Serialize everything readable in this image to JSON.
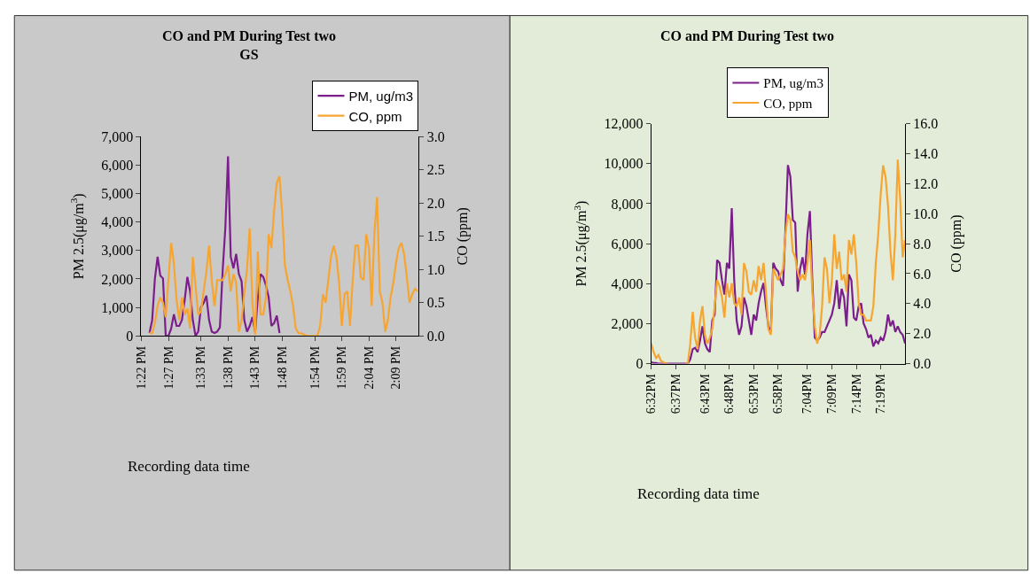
{
  "chart_data": [
    {
      "type": "line",
      "title": "CO and PM During Test two\nGS",
      "xlabel": "Recording data time",
      "ylabel": "PM 2.5(μg/m$^{3}$)",
      "y2label": "CO (ppm)",
      "legend": "top right",
      "marker": "none",
      "line_style": "solid",
      "x": [
        13.3917,
        13.4,
        13.4083,
        13.4167,
        13.425,
        13.4333,
        13.4417,
        13.45,
        13.4583,
        13.4667,
        13.475,
        13.4833,
        13.4917,
        13.5,
        13.5083,
        13.5167,
        13.525,
        13.5333,
        13.5417,
        13.55,
        13.5583,
        13.5667,
        13.575,
        13.5833,
        13.5917,
        13.6,
        13.6083,
        13.6167,
        13.625,
        13.6333,
        13.6417,
        13.65,
        13.6583,
        13.6667,
        13.675,
        13.6833,
        13.6917,
        13.7,
        13.7083,
        13.7167,
        13.725,
        13.7333,
        13.7417,
        13.75,
        13.7583,
        13.7667,
        13.775,
        13.7833,
        13.7917,
        13.8,
        13.8083,
        13.8167,
        13.825,
        13.8333,
        13.8417,
        13.85,
        13.8583,
        13.8667,
        13.875,
        13.8833,
        13.8917,
        13.9,
        13.9083,
        13.9167,
        13.925,
        13.9333,
        13.9417,
        13.95,
        13.9583,
        13.9667,
        13.975,
        13.9833,
        13.9917,
        14.0,
        14.0083,
        14.0167,
        14.025,
        14.0333,
        14.0417,
        14.05,
        14.0583,
        14.0667,
        14.075,
        14.0833,
        14.0917,
        14.1,
        14.1083,
        14.1167,
        14.125,
        14.1333,
        14.1417,
        14.15,
        14.1583,
        14.1667,
        14.175,
        14.1833,
        14.1917,
        14.2,
        14.2083,
        14.2167
      ],
      "series": [
        {
          "name": "PM, ug/m3",
          "color": "#7b1e8c",
          "values": [
            100,
            550,
            2000,
            2780,
            2120,
            2020,
            0,
            0,
            250,
            760,
            350,
            350,
            560,
            1260,
            2070,
            1570,
            560,
            0,
            150,
            1010,
            1160,
            1410,
            560,
            150,
            100,
            150,
            300,
            2270,
            3790,
            6310,
            2780,
            2370,
            2880,
            2170,
            1920,
            560,
            150,
            350,
            660,
            150,
            1360,
            2170,
            2070,
            1770,
            1360,
            350,
            450,
            710,
            100,
            null,
            null,
            null,
            null,
            null,
            null,
            null,
            null,
            null,
            null,
            null,
            null,
            null,
            null,
            null,
            null,
            null,
            null,
            null,
            null,
            null,
            null,
            null,
            null,
            null,
            null,
            null,
            null,
            null,
            null,
            null,
            null,
            null,
            null,
            null,
            null,
            null,
            null,
            null,
            null,
            null,
            null,
            null,
            null,
            null,
            null,
            null,
            null,
            null,
            null,
            null
          ]
        },
        {
          "name": "CO, ppm",
          "color": "#f7a531",
          "axis": "y2",
          "values": [
            0.05,
            0.04,
            0.2,
            0.45,
            0.58,
            0.5,
            0.28,
            0.84,
            1.4,
            1.1,
            0.54,
            0.24,
            0.58,
            0.32,
            0.41,
            0.11,
            1.19,
            0.76,
            0.32,
            0.37,
            0.67,
            0.97,
            1.36,
            0.84,
            0.45,
            0.84,
            0.84,
            0.84,
            0.93,
            1.06,
            0.67,
            0.93,
            0.8,
            0.06,
            0.24,
            0.63,
            1.01,
            1.62,
            0.5,
            0.02,
            1.27,
            0.32,
            0.32,
            0.58,
            1.53,
            1.32,
            1.88,
            2.31,
            2.4,
            1.83,
            1.06,
            0.84,
            0.67,
            0.45,
            0.11,
            0.04,
            0.04,
            0.02,
            0,
            0,
            0,
            0,
            0,
            0.15,
            0.63,
            0.5,
            0.84,
            1.19,
            1.36,
            1.19,
            0.8,
            0.15,
            0.63,
            0.67,
            0.15,
            0.84,
            1.36,
            1.36,
            0.88,
            0.84,
            1.53,
            1.32,
            0.45,
            1.53,
            2.09,
            0.67,
            0.5,
            0.06,
            0.24,
            0.58,
            0.8,
            1.1,
            1.32,
            1.4,
            1.23,
            0.88,
            0.5,
            0.63,
            0.71,
            0.67
          ]
        }
      ],
      "xlim": [
        13.3667,
        14.22
      ],
      "xticks": [
        {
          "value": 13.3667,
          "label": "1:22 PM"
        },
        {
          "value": 13.45,
          "label": "1:27 PM"
        },
        {
          "value": 13.55,
          "label": "1:33 PM"
        },
        {
          "value": 13.6333,
          "label": "1:38 PM"
        },
        {
          "value": 13.7167,
          "label": "1:43 PM"
        },
        {
          "value": 13.8,
          "label": "1:48 PM"
        },
        {
          "value": 13.9,
          "label": "1:54 PM"
        },
        {
          "value": 13.9833,
          "label": "1:59 PM"
        },
        {
          "value": 14.0667,
          "label": "2:04 PM"
        },
        {
          "value": 14.15,
          "label": "2:09 PM"
        }
      ],
      "ylim": [
        0,
        7000
      ],
      "yticks": [
        0,
        {
          "value": 1000,
          "label": "1,000"
        },
        {
          "value": 2000,
          "label": "2,000"
        },
        {
          "value": 3000,
          "label": "3,000"
        },
        {
          "value": 4000,
          "label": "4,000"
        },
        {
          "value": 5000,
          "label": "5,000"
        },
        {
          "value": 6000,
          "label": "6,000"
        },
        {
          "value": 7000,
          "label": "7,000"
        }
      ],
      "y2lim": [
        0,
        3
      ],
      "y2ticks": [
        {
          "value": 0,
          "label": "0.0"
        },
        {
          "value": 0.5,
          "label": "0.5"
        },
        {
          "value": 1,
          "label": "1.0"
        },
        {
          "value": 1.5,
          "label": "1.5"
        },
        {
          "value": 2,
          "label": "2.0"
        },
        {
          "value": 2.5,
          "label": "2.5"
        },
        {
          "value": 3,
          "label": "3.0"
        }
      ]
    },
    {
      "type": "line",
      "title": "CO and PM During Test two",
      "xlabel": "Recording data time",
      "ylabel": "PM 2.5(μg/m$^{3}$)",
      "y2label": "CO (ppm)",
      "legend": "top",
      "marker": "none",
      "line_style": "solid",
      "x": [
        18.5333,
        18.5417,
        18.55,
        18.5583,
        18.5667,
        18.575,
        18.5833,
        18.5917,
        18.6,
        18.6083,
        18.6167,
        18.625,
        18.6333,
        18.6417,
        18.65,
        18.6583,
        18.6667,
        18.675,
        18.6833,
        18.6917,
        18.7,
        18.7083,
        18.7167,
        18.725,
        18.7333,
        18.7417,
        18.75,
        18.7583,
        18.7667,
        18.775,
        18.7833,
        18.7917,
        18.8,
        18.8083,
        18.8167,
        18.825,
        18.8333,
        18.8417,
        18.85,
        18.8583,
        18.8667,
        18.875,
        18.8833,
        18.8917,
        18.9,
        18.9083,
        18.9167,
        18.925,
        18.9333,
        18.9417,
        18.95,
        18.9583,
        18.9667,
        18.975,
        18.9833,
        18.9917,
        19.0,
        19.0083,
        19.0167,
        19.025,
        19.0333,
        19.0417,
        19.05,
        19.0583,
        19.0667,
        19.075,
        19.0833,
        19.0917,
        19.1,
        19.1083,
        19.1167,
        19.125,
        19.1333,
        19.1417,
        19.15,
        19.1583,
        19.1667,
        19.175,
        19.1833,
        19.1917,
        19.2,
        19.2083,
        19.2167,
        19.225,
        19.2333,
        19.2417,
        19.25,
        19.2583,
        19.2667,
        19.275,
        19.2833,
        19.2917,
        19.3,
        19.3083,
        19.3167,
        19.325,
        19.3333,
        19.3417,
        19.35,
        19.3583,
        19.3667,
        19.375,
        19.3833,
        19.3917,
        19.4
      ],
      "series": [
        {
          "name": "PM, ug/m3",
          "color": "#7b1e8c",
          "values": [
            70,
            30,
            30,
            0,
            0,
            0,
            0,
            0,
            0,
            0,
            0,
            0,
            0,
            0,
            0,
            0,
            220,
            720,
            790,
            580,
            1150,
            1870,
            1010,
            720,
            580,
            2160,
            2450,
            5180,
            5040,
            4170,
            3450,
            5040,
            4750,
            7770,
            4170,
            2160,
            1440,
            1870,
            3310,
            2880,
            2160,
            1440,
            2450,
            2160,
            3020,
            3600,
            4030,
            2880,
            1870,
            1580,
            5040,
            4750,
            4610,
            4170,
            3890,
            6760,
            9930,
            9350,
            7190,
            7050,
            3600,
            4750,
            5320,
            4460,
            6480,
            7630,
            4170,
            1300,
            1150,
            1300,
            1580,
            1580,
            1870,
            2160,
            2450,
            3020,
            4170,
            2730,
            3740,
            3310,
            1870,
            4460,
            4170,
            2300,
            2160,
            2880,
            3020,
            2010,
            1730,
            1300,
            1440,
            860,
            1150,
            1010,
            1300,
            1150,
            1580,
            2450,
            1870,
            2160,
            1580,
            1870,
            1580,
            1440,
            1010
          ]
        },
        {
          "name": "CO, ppm",
          "color": "#f7a531",
          "axis": "y2",
          "values": [
            1.34,
            0.77,
            0.38,
            0.57,
            0.19,
            0.1,
            0,
            0,
            null,
            null,
            null,
            null,
            null,
            null,
            0,
            0,
            1.34,
            3.45,
            1.72,
            0.96,
            2.87,
            3.83,
            1.92,
            1.34,
            1.72,
            2.3,
            3.83,
            5.56,
            5.17,
            4.41,
            3.07,
            5.36,
            4.41,
            5.36,
            4.02,
            3.83,
            4.41,
            3.26,
            6.71,
            6.13,
            4.79,
            4.6,
            5.56,
            4.79,
            6.51,
            5.56,
            6.71,
            4.79,
            2.3,
            1.92,
            6.32,
            5.94,
            5.56,
            5.94,
            6.32,
            8.62,
            9.96,
            9.58,
            7.47,
            7.09,
            6.13,
            5.56,
            5.94,
            5.56,
            6.71,
            8.24,
            4.79,
            2.49,
            1.34,
            1.92,
            3.83,
            7.09,
            6.32,
            4.02,
            5.56,
            8.62,
            6.32,
            7.47,
            5.56,
            5.94,
            4.79,
            8.24,
            7.28,
            8.62,
            6.71,
            4.02,
            3.26,
            3.26,
            2.87,
            2.87,
            2.87,
            3.83,
            6.71,
            8.62,
            11.3,
            13.22,
            12.45,
            10.54,
            7.47,
            5.56,
            8.62,
            13.6,
            10.92,
            7.09,
            8.24
          ]
        }
      ],
      "xlim": [
        18.5333,
        19.4
      ],
      "xticks": [
        {
          "value": 18.5333,
          "label": "6:32PM"
        },
        {
          "value": 18.6167,
          "label": "6:37PM"
        },
        {
          "value": 18.7167,
          "label": "6:43PM"
        },
        {
          "value": 18.8,
          "label": "6:48PM"
        },
        {
          "value": 18.8833,
          "label": "6:53PM"
        },
        {
          "value": 18.9667,
          "label": "6:58PM"
        },
        {
          "value": 19.0667,
          "label": "7:04PM"
        },
        {
          "value": 19.15,
          "label": "7:09PM"
        },
        {
          "value": 19.2333,
          "label": "7:14PM"
        },
        {
          "value": 19.3167,
          "label": "7:19PM"
        }
      ],
      "ylim": [
        0,
        12000
      ],
      "yticks": [
        0,
        {
          "value": 2000,
          "label": "2,000"
        },
        {
          "value": 4000,
          "label": "4,000"
        },
        {
          "value": 6000,
          "label": "6,000"
        },
        {
          "value": 8000,
          "label": "8,000"
        },
        {
          "value": 10000,
          "label": "10,000"
        },
        {
          "value": 12000,
          "label": "12,000"
        }
      ],
      "y2lim": [
        0,
        16
      ],
      "y2ticks": [
        {
          "value": 0,
          "label": "0.0"
        },
        {
          "value": 2,
          "label": "2.0"
        },
        {
          "value": 4,
          "label": "4.0"
        },
        {
          "value": 6,
          "label": "6.0"
        },
        {
          "value": 8,
          "label": "8.0"
        },
        {
          "value": 10,
          "label": "10.0"
        },
        {
          "value": 12,
          "label": "12.0"
        },
        {
          "value": 14,
          "label": "14.0"
        },
        {
          "value": 16,
          "label": "16.0"
        }
      ]
    }
  ]
}
